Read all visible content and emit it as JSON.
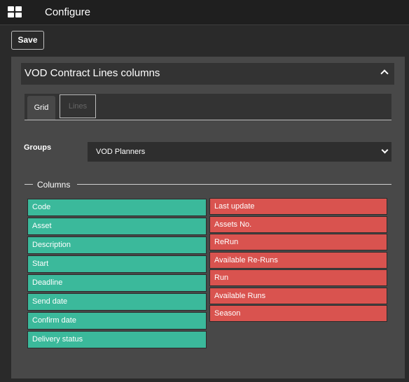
{
  "app": {
    "title": "Configure",
    "icon": "grid-icon"
  },
  "toolbar": {
    "save_label": "Save"
  },
  "panel": {
    "title": "VOD Contract Lines columns",
    "collapse_icon": "chevron-up-icon",
    "tabs": [
      {
        "label": "Grid",
        "active": true
      },
      {
        "label": "Lines",
        "active": false
      }
    ],
    "groups": {
      "label": "Groups",
      "selected": "VOD Planners",
      "dropdown_icon": "chevron-down-icon"
    },
    "columns": {
      "legend": "Columns",
      "available": [
        "Code",
        "Asset",
        "Description",
        "Start",
        "Deadline",
        "Send date",
        "Confirm date",
        "Delivery status"
      ],
      "selected": [
        "Last update",
        "Assets No.",
        "ReRun",
        "Available Re-Runs",
        "Run",
        "Available Runs",
        "Season"
      ]
    }
  },
  "colors": {
    "available": "#3bb99b",
    "selected": "#d9534f",
    "panel_bg": "#484848",
    "header_bg": "#333333"
  }
}
